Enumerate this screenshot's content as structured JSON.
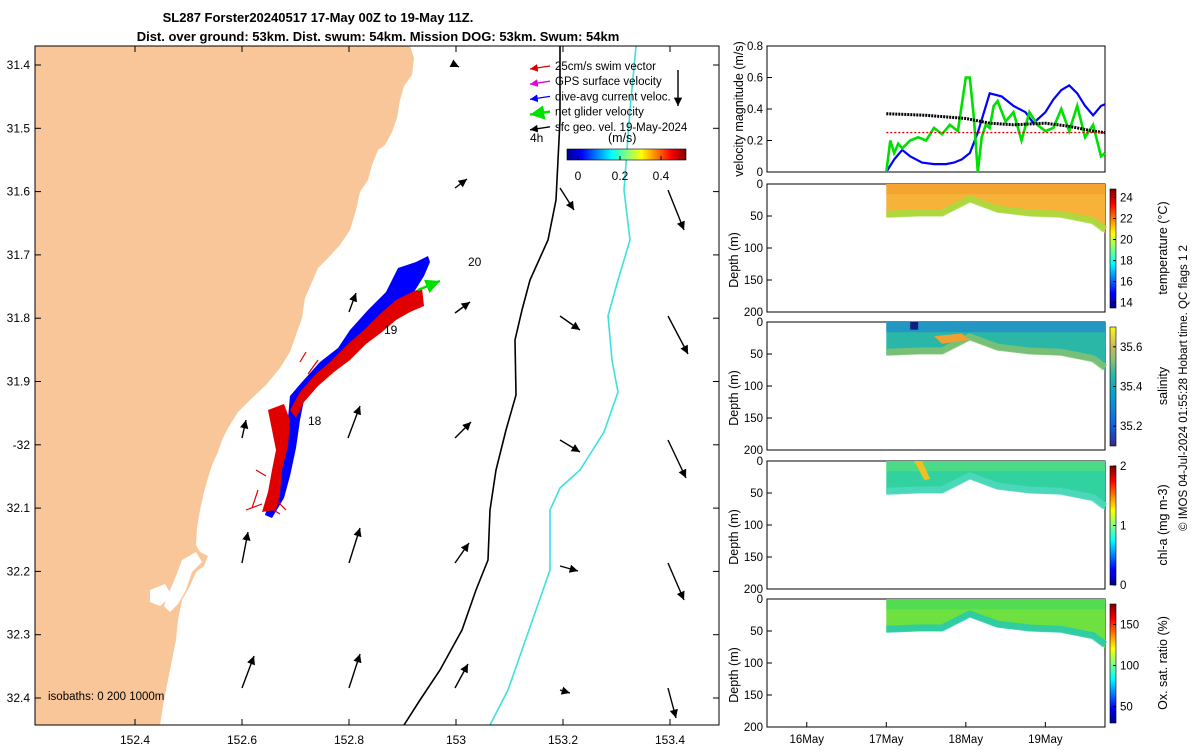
{
  "title_line1": "SL287 Forster20240517 17-May 00Z to 19-May 11Z.",
  "title_line2": "Dist. over ground: 53km. Dist. swum: 54km. Mission DOG: 53km. Swum: 54km",
  "footer": "© IMOS 04-Jul-2024 01:55:28 Hobart time. QC flags 1  2",
  "map": {
    "lat_ticks": [
      "31.4",
      "31.5",
      "31.6",
      "31.7",
      "31.8",
      "31.9",
      "-32",
      "32.1",
      "32.2",
      "32.3",
      "32.4"
    ],
    "lon_ticks": [
      "152.4",
      "152.6",
      "152.8",
      "153",
      "153.2",
      "153.4"
    ],
    "legend": [
      "25cm/s swim vector",
      "GPS surface velocity",
      "dive-avg current veloc.",
      "net glider velocity",
      "sfc geo. vel. 19-May-2024"
    ],
    "legend_colors": [
      "#e00000",
      "#e000e0",
      "#0000ff",
      "#00e000",
      "#000000"
    ],
    "colorbar_label": "(m/s)",
    "colorbar_ticks": [
      "0",
      "0.2",
      "0.4"
    ],
    "time_marker": "4h",
    "day_labels": [
      "20",
      "19",
      "18"
    ],
    "isobaths": "isobaths: 0   200  1000m",
    "land_color": "#f9c699",
    "contour_200_color": "#000000",
    "contour_1000_color": "#3ee0e0"
  },
  "chart_data": [
    {
      "type": "line",
      "title": "",
      "ylabel": "velocity magnitude (m/s)",
      "ylim": [
        0,
        0.8
      ],
      "yticks": [
        "0",
        "0.2",
        "0.4",
        "0.6",
        "0.8"
      ],
      "xlim_days": [
        15.5,
        19.75
      ],
      "series": [
        {
          "name": "dive-avg current",
          "color": "#0000ff",
          "x": [
            17.0,
            17.1,
            17.2,
            17.3,
            17.45,
            17.6,
            17.75,
            17.85,
            17.95,
            18.05,
            18.15,
            18.3,
            18.45,
            18.6,
            18.75,
            18.85,
            19.0,
            19.1,
            19.2,
            19.3,
            19.4,
            19.5,
            19.6,
            19.7,
            19.75
          ],
          "y": [
            0.0,
            0.08,
            0.14,
            0.1,
            0.06,
            0.05,
            0.05,
            0.06,
            0.08,
            0.12,
            0.25,
            0.5,
            0.48,
            0.42,
            0.38,
            0.31,
            0.38,
            0.46,
            0.52,
            0.55,
            0.5,
            0.42,
            0.36,
            0.42,
            0.43
          ]
        },
        {
          "name": "net glider velocity",
          "color": "#00e000",
          "x": [
            17.0,
            17.05,
            17.1,
            17.15,
            17.2,
            17.3,
            17.4,
            17.5,
            17.6,
            17.7,
            17.8,
            17.9,
            18.0,
            18.05,
            18.1,
            18.15,
            18.2,
            18.25,
            18.3,
            18.35,
            18.4,
            18.5,
            18.6,
            18.7,
            18.8,
            18.9,
            19.0,
            19.1,
            19.2,
            19.3,
            19.4,
            19.5,
            19.6,
            19.7,
            19.75
          ],
          "y": [
            0.0,
            0.2,
            0.12,
            0.18,
            0.15,
            0.2,
            0.22,
            0.2,
            0.28,
            0.24,
            0.3,
            0.26,
            0.6,
            0.6,
            0.35,
            0.0,
            0.22,
            0.3,
            0.28,
            0.42,
            0.45,
            0.32,
            0.38,
            0.2,
            0.38,
            0.3,
            0.26,
            0.28,
            0.4,
            0.26,
            0.42,
            0.22,
            0.3,
            0.1,
            0.12
          ]
        },
        {
          "name": "sfc geo. vel.",
          "color": "#000000",
          "x": [
            17.0,
            17.5,
            18.0,
            18.3,
            18.6,
            19.0,
            19.3,
            19.6,
            19.75
          ],
          "y": [
            0.37,
            0.36,
            0.34,
            0.31,
            0.3,
            0.31,
            0.29,
            0.26,
            0.25
          ]
        },
        {
          "name": "GPS surface velocity",
          "color": "#e00000",
          "x": [
            17.0,
            17.5,
            18.0,
            18.5,
            19.0,
            19.75
          ],
          "y": [
            0.25,
            0.25,
            0.25,
            0.25,
            0.25,
            0.25
          ]
        }
      ]
    },
    {
      "type": "heatmap",
      "ylabel": "Depth (m)",
      "cbar_label": "temperature (°C)",
      "yticks": [
        "0",
        "50",
        "100",
        "150",
        "200"
      ],
      "cbar_ticks": [
        "14",
        "16",
        "18",
        "20",
        "22",
        "24"
      ],
      "cbar_range": [
        13.5,
        24.8
      ]
    },
    {
      "type": "heatmap",
      "ylabel": "Depth (m)",
      "cbar_label": "salinity",
      "yticks": [
        "0",
        "50",
        "100",
        "150",
        "200"
      ],
      "cbar_ticks": [
        "35.2",
        "35.4",
        "35.6"
      ],
      "cbar_range": [
        35.1,
        35.7
      ]
    },
    {
      "type": "heatmap",
      "ylabel": "Depth (m)",
      "cbar_label": "chl-a (mg m-3)",
      "yticks": [
        "0",
        "50",
        "100",
        "150",
        "200"
      ],
      "cbar_ticks": [
        "0",
        "1",
        "2"
      ],
      "cbar_range": [
        0,
        2
      ]
    },
    {
      "type": "heatmap",
      "ylabel": "Depth (m)",
      "cbar_label": "Ox. sat. ratio (%)",
      "yticks": [
        "0",
        "50",
        "100",
        "150",
        "200"
      ],
      "cbar_ticks": [
        "50",
        "100",
        "150"
      ],
      "cbar_range": [
        30,
        175
      ]
    }
  ],
  "time_axis": {
    "labels": [
      "16May",
      "17May",
      "18May",
      "19May"
    ],
    "values": [
      16,
      17,
      18,
      19
    ]
  }
}
